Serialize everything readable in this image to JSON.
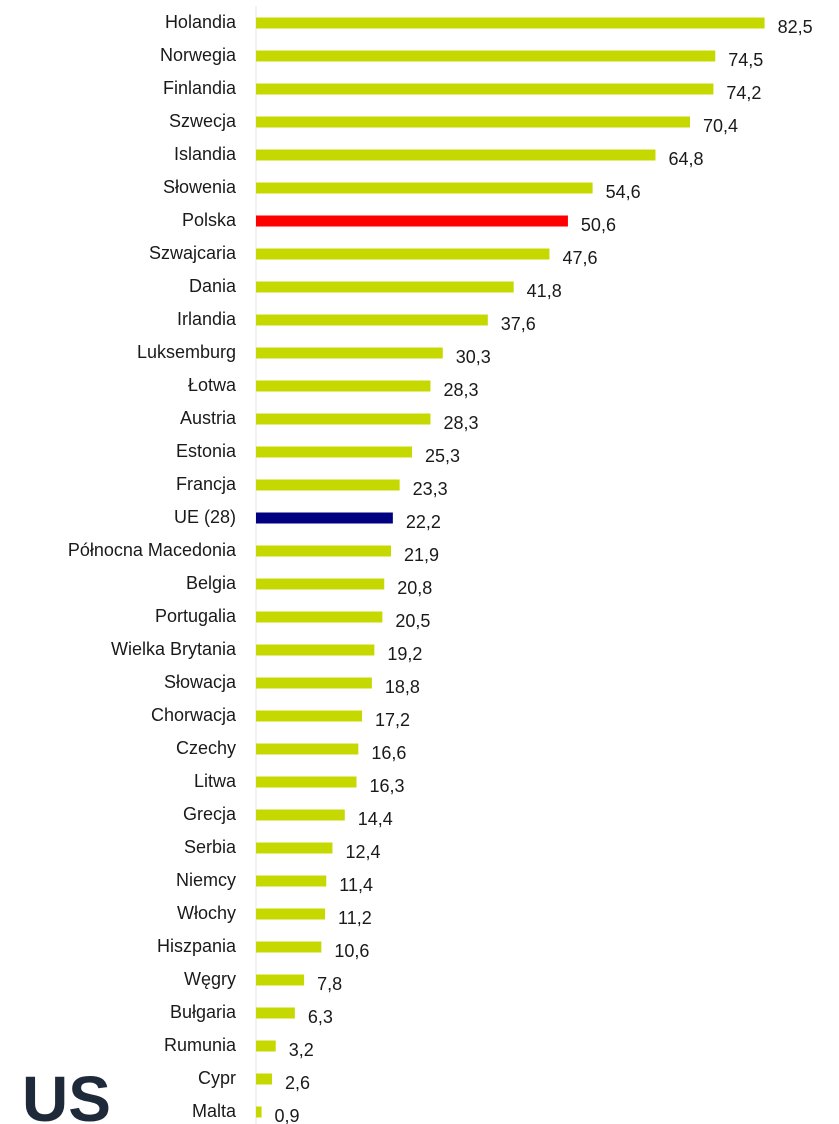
{
  "chart_data": {
    "type": "barh",
    "categories": [
      "Holandia",
      "Norwegia",
      "Finlandia",
      "Szwecja",
      "Islandia",
      "Słowenia",
      "Polska",
      "Szwajcaria",
      "Dania",
      "Irlandia",
      "Luksemburg",
      "Łotwa",
      "Austria",
      "Estonia",
      "Francja",
      "UE (28)",
      "Północna Macedonia",
      "Belgia",
      "Portugalia",
      "Wielka Brytania",
      "Słowacja",
      "Chorwacja",
      "Czechy",
      "Litwa",
      "Grecja",
      "Serbia",
      "Niemcy",
      "Włochy",
      "Hiszpania",
      "Węgry",
      "Bułgaria",
      "Rumunia",
      "Cypr",
      "Malta"
    ],
    "values": [
      82.5,
      74.5,
      74.2,
      70.4,
      64.8,
      54.6,
      50.6,
      47.6,
      41.8,
      37.6,
      30.3,
      28.3,
      28.3,
      25.3,
      23.3,
      22.2,
      21.9,
      20.8,
      20.5,
      19.2,
      18.8,
      17.2,
      16.6,
      16.3,
      14.4,
      12.4,
      11.4,
      11.2,
      10.6,
      7.8,
      6.3,
      3.2,
      2.6,
      0.9
    ],
    "value_labels": [
      "82,5",
      "74,5",
      "74,2",
      "70,4",
      "64,8",
      "54,6",
      "50,6",
      "47,6",
      "41,8",
      "37,6",
      "30,3",
      "28,3",
      "28,3",
      "25,3",
      "23,3",
      "22,2",
      "21,9",
      "20,8",
      "20,5",
      "19,2",
      "18,8",
      "17,2",
      "16,6",
      "16,3",
      "14,4",
      "12,4",
      "11,4",
      "11,2",
      "10,6",
      "7,8",
      "6,3",
      "3,2",
      "2,6",
      "0,9"
    ],
    "colors": [
      "#c5d900",
      "#c5d900",
      "#c5d900",
      "#c5d900",
      "#c5d900",
      "#c5d900",
      "#ff0000",
      "#c5d900",
      "#c5d900",
      "#c5d900",
      "#c5d900",
      "#c5d900",
      "#c5d900",
      "#c5d900",
      "#c5d900",
      "#000080",
      "#c5d900",
      "#c5d900",
      "#c5d900",
      "#c5d900",
      "#c5d900",
      "#c5d900",
      "#c5d900",
      "#c5d900",
      "#c5d900",
      "#c5d900",
      "#c5d900",
      "#c5d900",
      "#c5d900",
      "#c5d900",
      "#c5d900",
      "#c5d900",
      "#c5d900",
      "#c5d900"
    ],
    "xlim": [
      0,
      85
    ]
  },
  "logo": "US"
}
